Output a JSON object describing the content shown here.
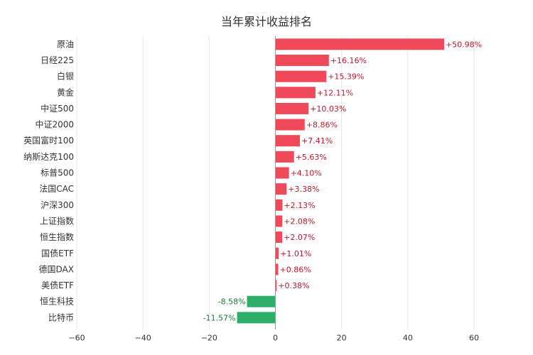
{
  "chart_data": {
    "type": "bar",
    "orientation": "horizontal",
    "title": "当年累计收益排名",
    "categories": [
      "原油",
      "日经225",
      "白银",
      "黄金",
      "中证500",
      "中证2000",
      "英国富时100",
      "纳斯达克100",
      "标普500",
      "法国CAC",
      "沪深300",
      "上证指数",
      "恒生指数",
      "国债ETF",
      "德国DAX",
      "美债ETF",
      "恒生科技",
      "比特币"
    ],
    "values": [
      50.98,
      16.16,
      15.39,
      12.11,
      10.03,
      8.86,
      7.41,
      5.63,
      4.1,
      3.38,
      2.13,
      2.08,
      2.07,
      1.01,
      0.86,
      0.38,
      -8.58,
      -11.57
    ],
    "value_labels": [
      "+50.98%",
      "+16.16%",
      "+15.39%",
      "+12.11%",
      "+10.03%",
      "+8.86%",
      "+7.41%",
      "+5.63%",
      "+4.10%",
      "+3.38%",
      "+2.13%",
      "+2.08%",
      "+2.07%",
      "+1.01%",
      "+0.86%",
      "+0.38%",
      "-8.58%",
      "-11.57%"
    ],
    "xlim": [
      -60,
      60
    ],
    "xticks": [
      -60,
      -40,
      -20,
      0,
      20,
      40,
      60
    ],
    "xtick_labels": [
      "−60",
      "−40",
      "−20",
      "0",
      "20",
      "40",
      "60"
    ],
    "grid": true,
    "colors": {
      "positive": "#f04a5a",
      "negative": "#2daf6a",
      "positive_text": "#c0182c",
      "negative_text": "#1a7a38",
      "grid": "#e6e6e6",
      "axis": "#999999"
    }
  }
}
